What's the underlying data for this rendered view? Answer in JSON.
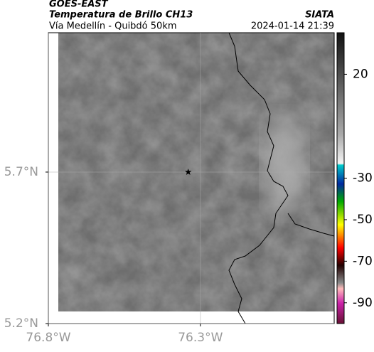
{
  "header": {
    "title": "GOES-EAST",
    "subtitle": "Temperatura de Brillo CH13",
    "region": "Vía Medellín - Quibdó 50km",
    "source": "SIATA",
    "timestamp": "2024-01-14 21:39"
  },
  "chart_data": {
    "type": "map",
    "xlim": [
      -76.8,
      -75.86
    ],
    "ylim": [
      5.2,
      6.16
    ],
    "xticks": [
      {
        "value": -76.8,
        "label": "76.8°W"
      },
      {
        "value": -76.3,
        "label": "76.3°W"
      }
    ],
    "yticks": [
      {
        "value": 5.2,
        "label": "5.2°N"
      },
      {
        "value": 5.7,
        "label": "5.7°N"
      }
    ],
    "marker": {
      "lon": -76.34,
      "lat": 5.7
    },
    "clim": [
      40,
      -100
    ],
    "cticks": [
      20,
      -30,
      -50,
      -70,
      -90
    ]
  }
}
